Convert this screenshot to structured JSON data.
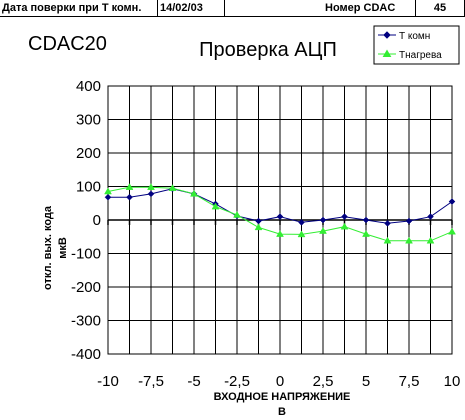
{
  "header": {
    "label_date": "Дата поверки при Т комн.",
    "date": "14/02/03",
    "label_number": "Номер CDAC",
    "number": "45"
  },
  "chart_data": {
    "type": "line",
    "device": "CDAC20",
    "title": "Проверка АЦП",
    "xlabel": "ВХОДНОЕ НАПРЯЖЕНИЕ",
    "xunit": "В",
    "ylabel": "откл. вых. кода",
    "yunit": "мкВ",
    "xlim": [
      -10,
      10
    ],
    "ylim": [
      -400,
      400
    ],
    "xticks": [
      "-10",
      "-7,5",
      "-5",
      "-2,5",
      "0",
      "2,5",
      "5",
      "7,5",
      "10"
    ],
    "yticks": [
      "400",
      "300",
      "200",
      "100",
      "0",
      "-100",
      "-200",
      "-300",
      "-400"
    ],
    "grid": true,
    "legend_position": "top-right",
    "x": [
      -10,
      -8.75,
      -7.5,
      -6.25,
      -5,
      -3.75,
      -2.5,
      -1.25,
      0,
      1.25,
      2.5,
      3.75,
      5,
      6.25,
      7.5,
      8.75,
      10
    ],
    "series": [
      {
        "name": "Т комн",
        "color": "#000080",
        "marker": "diamond",
        "values": [
          68,
          68,
          78,
          93,
          78,
          48,
          12,
          -3,
          10,
          -7,
          0,
          10,
          0,
          -10,
          -3,
          10,
          55
        ]
      },
      {
        "name": "Тнагрева",
        "color": "#33ee33",
        "marker": "triangle",
        "values": [
          85,
          98,
          98,
          95,
          78,
          40,
          15,
          -22,
          -42,
          -43,
          -33,
          -20,
          -42,
          -62,
          -62,
          -62,
          -35
        ]
      }
    ]
  }
}
